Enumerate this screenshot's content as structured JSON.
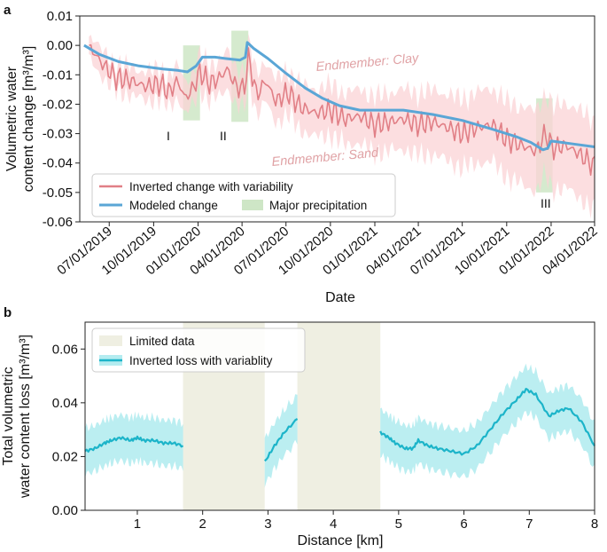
{
  "colors": {
    "inverted": "#e17f86",
    "inverted_band": "#fbd3d6",
    "modeled": "#5aa6d6",
    "precip": "#b9dcae",
    "cyan": "#1cb4c9",
    "cyan_band": "#b4ecf0",
    "limited": "#efefe2",
    "annotation": "#e0a2a5"
  },
  "chart_data": [
    {
      "type": "line",
      "panel_label": "a",
      "xlabel": "Date",
      "ylabel_line1": "Volumetric water",
      "ylabel_line2": "content change [m³/m³]",
      "xlim": [
        "2019-05-01",
        "2022-04-01"
      ],
      "ylim": [
        -0.06,
        0.01
      ],
      "yticks": [
        0.01,
        0.0,
        -0.01,
        -0.02,
        -0.03,
        -0.04,
        -0.05,
        -0.06
      ],
      "ytick_labels": [
        "0.01",
        "0.00",
        "-0.01",
        "-0.02",
        "-0.03",
        "-0.04",
        "-0.05",
        "-0.06"
      ],
      "xticks": [
        "2019-07-01",
        "2019-10-01",
        "2020-01-01",
        "2020-04-01",
        "2020-07-01",
        "2020-10-01",
        "2021-01-01",
        "2021-04-01",
        "2021-07-01",
        "2021-10-01",
        "2022-01-01",
        "2022-04-01"
      ],
      "xtick_labels": [
        "07/01/2019",
        "10/01/2019",
        "01/01/2020",
        "04/01/2020",
        "07/01/2020",
        "10/01/2020",
        "01/01/2021",
        "04/01/2021",
        "07/01/2021",
        "10/01/2021",
        "01/01/2022",
        "04/01/2022"
      ],
      "legend": {
        "position": "lower-left",
        "entries": [
          "Inverted change with variability",
          "Modeled change",
          "Major precipitation"
        ]
      },
      "annotations": {
        "clay": "Endmember: Clay",
        "sand": "Endmember: Sand",
        "roman": [
          "I",
          "II",
          "III"
        ]
      },
      "precipitation_periods": [
        {
          "label": "I",
          "start": "2019-12-01",
          "end": "2020-01-05",
          "ymin": -0.0255,
          "ymax": 0.0
        },
        {
          "label": "II",
          "start": "2020-03-10",
          "end": "2020-04-14",
          "ymin": -0.026,
          "ymax": 0.005
        },
        {
          "label": "III",
          "start": "2021-12-01",
          "end": "2022-01-04",
          "ymin": -0.05,
          "ymax": -0.018
        }
      ],
      "series": [
        {
          "name": "Modeled change",
          "x": [
            "2019-05-10",
            "2019-06-10",
            "2019-07-20",
            "2019-09-01",
            "2019-10-20",
            "2019-11-20",
            "2019-12-10",
            "2019-12-28",
            "2020-01-10",
            "2020-02-05",
            "2020-03-01",
            "2020-03-28",
            "2020-04-08",
            "2020-04-12",
            "2020-04-25",
            "2020-05-25",
            "2020-07-01",
            "2020-08-10",
            "2020-09-15",
            "2020-10-20",
            "2020-12-01",
            "2021-01-15",
            "2021-03-01",
            "2021-05-01",
            "2021-07-01",
            "2021-09-01",
            "2021-10-20",
            "2021-11-20",
            "2021-12-15",
            "2021-12-25",
            "2022-01-01",
            "2022-02-15",
            "2022-04-01"
          ],
          "y": [
            0.0,
            -0.003,
            -0.0055,
            -0.007,
            -0.008,
            -0.0085,
            -0.009,
            -0.007,
            -0.004,
            -0.004,
            -0.0045,
            -0.005,
            -0.004,
            0.001,
            -0.001,
            -0.0045,
            -0.0095,
            -0.0145,
            -0.018,
            -0.0205,
            -0.022,
            -0.022,
            -0.022,
            -0.0235,
            -0.0255,
            -0.0285,
            -0.031,
            -0.033,
            -0.0355,
            -0.035,
            -0.0325,
            -0.0335,
            -0.0345
          ]
        },
        {
          "name": "Inverted change with variability",
          "x": [
            "2019-05-20",
            "2019-06-15",
            "2019-07-15",
            "2019-08-15",
            "2019-09-15",
            "2019-10-15",
            "2019-11-01",
            "2019-11-20",
            "2019-12-05",
            "2019-12-20",
            "2020-01-05",
            "2020-01-25",
            "2020-02-15",
            "2020-03-01",
            "2020-03-20",
            "2020-04-05",
            "2020-04-15",
            "2020-05-01",
            "2020-05-20",
            "2020-06-10",
            "2020-07-05",
            "2020-08-01",
            "2020-09-01",
            "2020-10-01",
            "2020-11-01",
            "2020-12-01",
            "2021-01-01",
            "2021-02-01",
            "2021-03-01",
            "2021-04-01",
            "2021-05-01",
            "2021-06-01",
            "2021-07-01",
            "2021-08-01",
            "2021-09-01",
            "2021-10-01",
            "2021-11-01",
            "2021-12-01",
            "2021-12-20",
            "2022-01-05",
            "2022-02-01",
            "2022-03-01",
            "2022-04-01"
          ],
          "y": [
            0.0,
            -0.006,
            -0.011,
            -0.012,
            -0.014,
            -0.013,
            -0.016,
            -0.012,
            -0.018,
            -0.015,
            -0.009,
            -0.013,
            -0.011,
            -0.008,
            -0.014,
            -0.015,
            -0.004,
            -0.017,
            -0.012,
            -0.019,
            -0.016,
            -0.021,
            -0.023,
            -0.022,
            -0.025,
            -0.024,
            -0.027,
            -0.026,
            -0.025,
            -0.027,
            -0.026,
            -0.028,
            -0.03,
            -0.028,
            -0.027,
            -0.032,
            -0.034,
            -0.036,
            -0.03,
            -0.035,
            -0.034,
            -0.037,
            -0.041
          ]
        }
      ]
    },
    {
      "type": "line",
      "panel_label": "b",
      "xlabel": "Distance [km]",
      "ylabel_line1": "Total volumetric",
      "ylabel_line2": "water content loss [m³/m³]",
      "xlim": [
        0.2,
        8.0
      ],
      "ylim": [
        0.0,
        0.07
      ],
      "xticks": [
        1,
        2,
        3,
        4,
        5,
        6,
        7,
        8
      ],
      "xtick_labels": [
        "1",
        "2",
        "3",
        "4",
        "5",
        "6",
        "7",
        "8"
      ],
      "yticks": [
        0.0,
        0.02,
        0.04,
        0.06
      ],
      "ytick_labels": [
        "0.00",
        "0.02",
        "0.04",
        "0.06"
      ],
      "legend": {
        "position": "top-left",
        "entries": [
          "Limited data",
          "Inverted loss with variablity"
        ]
      },
      "limited_data_regions": [
        [
          1.7,
          2.95
        ],
        [
          3.45,
          4.72
        ]
      ],
      "series": [
        {
          "name": "Inverted loss with variablity",
          "segments": [
            {
              "x": [
                0.2,
                0.35,
                0.5,
                0.6,
                0.75,
                0.9,
                1.0,
                1.1,
                1.25,
                1.4,
                1.55,
                1.7
              ],
              "y": [
                0.022,
                0.023,
                0.025,
                0.026,
                0.027,
                0.026,
                0.027,
                0.026,
                0.026,
                0.025,
                0.025,
                0.024
              ]
            },
            {
              "x": [
                2.95,
                3.1,
                3.25,
                3.45
              ],
              "y": [
                0.018,
                0.024,
                0.029,
                0.034
              ]
            },
            {
              "x": [
                4.72,
                4.85,
                4.95,
                5.1,
                5.22,
                5.3,
                5.45,
                5.6,
                5.8,
                6.0,
                6.2,
                6.4,
                6.6,
                6.8,
                6.95,
                7.1,
                7.3,
                7.45,
                7.6,
                7.8,
                8.0
              ],
              "y": [
                0.029,
                0.027,
                0.025,
                0.023,
                0.023,
                0.026,
                0.024,
                0.023,
                0.022,
                0.021,
                0.024,
                0.03,
                0.036,
                0.041,
                0.045,
                0.043,
                0.035,
                0.037,
                0.038,
                0.033,
                0.024
              ]
            }
          ]
        }
      ]
    }
  ]
}
